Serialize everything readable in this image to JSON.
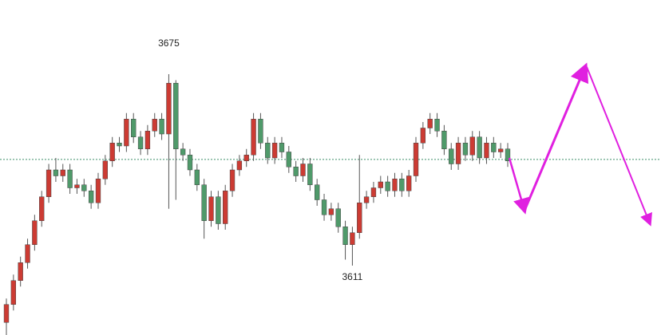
{
  "chart_data": {
    "type": "candlestick",
    "peak_label": 3675,
    "trough_label": 3611,
    "peak_index": 23,
    "trough_index": 49,
    "hline": 3646.5,
    "up_color": "#cc3b33",
    "down_color": "#4f9a6a",
    "hline_color": "#3f8f6a",
    "open": [
      3592,
      3598,
      3606,
      3612,
      3618,
      3626,
      3634,
      3643,
      3641,
      3643,
      3637,
      3638,
      3636,
      3632,
      3640,
      3646,
      3652,
      3651,
      3660,
      3654,
      3650,
      3656,
      3660,
      3655,
      3672,
      3650,
      3648,
      3643,
      3638,
      3626,
      3634,
      3625,
      3636,
      3643,
      3646,
      3648,
      3660,
      3652,
      3647,
      3652,
      3649,
      3644,
      3641,
      3645,
      3638,
      3633,
      3628,
      3630,
      3624,
      3618,
      3622,
      3632,
      3634,
      3637,
      3639,
      3636,
      3640,
      3636,
      3641,
      3652,
      3657,
      3660,
      3656,
      3650,
      3645,
      3652,
      3648,
      3654,
      3647,
      3652,
      3649,
      3650
    ],
    "high": [
      3600,
      3608,
      3614,
      3620,
      3628,
      3636,
      3645,
      3647,
      3645,
      3645,
      3640,
      3640,
      3638,
      3642,
      3648,
      3654,
      3654,
      3662,
      3662,
      3656,
      3658,
      3662,
      3662,
      3675,
      3673,
      3652,
      3650,
      3645,
      3640,
      3636,
      3636,
      3638,
      3645,
      3648,
      3650,
      3662,
      3662,
      3654,
      3654,
      3654,
      3651,
      3646,
      3647,
      3647,
      3640,
      3635,
      3632,
      3632,
      3626,
      3624,
      3648,
      3636,
      3639,
      3641,
      3641,
      3642,
      3642,
      3643,
      3654,
      3659,
      3662,
      3662,
      3658,
      3652,
      3654,
      3654,
      3656,
      3656,
      3654,
      3654,
      3652,
      3652
    ],
    "low": [
      3586,
      3596,
      3604,
      3610,
      3616,
      3624,
      3632,
      3639,
      3639,
      3635,
      3635,
      3634,
      3630,
      3630,
      3638,
      3644,
      3649,
      3649,
      3652,
      3648,
      3648,
      3654,
      3653,
      3630,
      3633,
      3646,
      3641,
      3636,
      3620,
      3624,
      3623,
      3623,
      3634,
      3641,
      3644,
      3646,
      3650,
      3645,
      3645,
      3647,
      3642,
      3639,
      3639,
      3636,
      3631,
      3626,
      3626,
      3622,
      3613,
      3611,
      3620,
      3630,
      3632,
      3635,
      3634,
      3634,
      3634,
      3634,
      3639,
      3650,
      3655,
      3654,
      3648,
      3643,
      3643,
      3646,
      3646,
      3645,
      3645,
      3647,
      3647,
      3644
    ],
    "close": [
      3598,
      3606,
      3612,
      3618,
      3626,
      3634,
      3643,
      3641,
      3643,
      3637,
      3638,
      3636,
      3632,
      3640,
      3646,
      3652,
      3651,
      3660,
      3654,
      3650,
      3656,
      3660,
      3655,
      3672,
      3650,
      3648,
      3643,
      3638,
      3626,
      3634,
      3625,
      3636,
      3643,
      3646,
      3648,
      3660,
      3652,
      3647,
      3652,
      3649,
      3644,
      3641,
      3645,
      3638,
      3633,
      3628,
      3630,
      3624,
      3618,
      3622,
      3632,
      3634,
      3637,
      3639,
      3636,
      3640,
      3636,
      3641,
      3652,
      3657,
      3660,
      3656,
      3650,
      3645,
      3652,
      3648,
      3654,
      3647,
      3652,
      3649,
      3650,
      3646
    ]
  }
}
